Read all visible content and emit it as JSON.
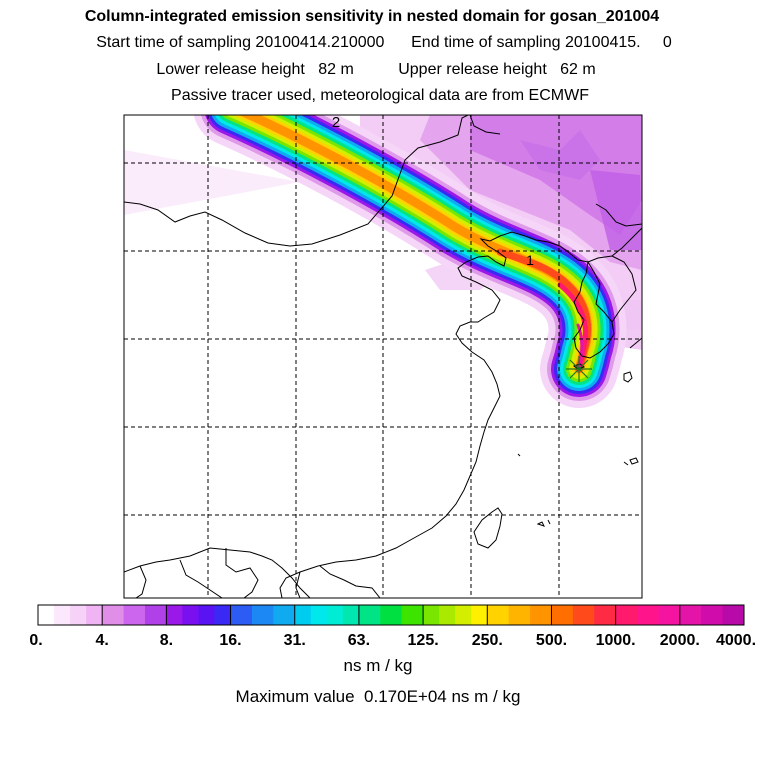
{
  "header": {
    "title": "Column-integrated emission sensitivity in nested domain for gosan_201004",
    "sampling_line": "Start time of sampling 20100414.210000      End time of sampling 20100415.     0",
    "release_line": "Lower release height   82 m          Upper release height   62 m",
    "tracer_line": "Passive tracer used, meteorological data are from ECMWF"
  },
  "map": {
    "trajectory_labels": [
      "2",
      "1"
    ],
    "receptor_marker": "asterisk"
  },
  "chart_data": {
    "type": "heatmap",
    "title": "Column-integrated emission sensitivity in nested domain for gosan_201004",
    "units": "ns m / kg",
    "maximum_value": 1700,
    "scale_ticks": [
      "0.",
      "4.",
      "8.",
      "16.",
      "31.",
      "63.",
      "125.",
      "250.",
      "500.",
      "1000.",
      "2000.",
      "4000."
    ],
    "scale_colors": [
      "#ffffff",
      "#fce8fc",
      "#f6d2f8",
      "#f0b4f4",
      "#e08ee8",
      "#cc66ee",
      "#b040e8",
      "#9a18e8",
      "#7a10f0",
      "#5a14f4",
      "#3a28f4",
      "#2c5cf4",
      "#1c88f4",
      "#10aaf0",
      "#00ccf0",
      "#00e8ec",
      "#00ecd4",
      "#00e8b0",
      "#00e486",
      "#00e040",
      "#3ce400",
      "#7ae600",
      "#aaea00",
      "#d4ee00",
      "#fff000",
      "#ffd200",
      "#ffb400",
      "#ff9400",
      "#ff6e00",
      "#ff4a1c",
      "#ff2a44",
      "#ff1a6e",
      "#ff148c",
      "#f414a0",
      "#e414a8",
      "#d00caa",
      "#b80aa8",
      "#9c08a0",
      "#7e0694",
      "#5c0a5c"
    ],
    "blocks_per_interval": [
      4,
      3,
      4,
      3,
      4,
      3,
      4,
      3,
      3,
      3,
      3
    ]
  },
  "footer": {
    "units_label": "ns m / kg",
    "maximum_label": "Maximum value  0.170E+04 ns m / kg"
  }
}
